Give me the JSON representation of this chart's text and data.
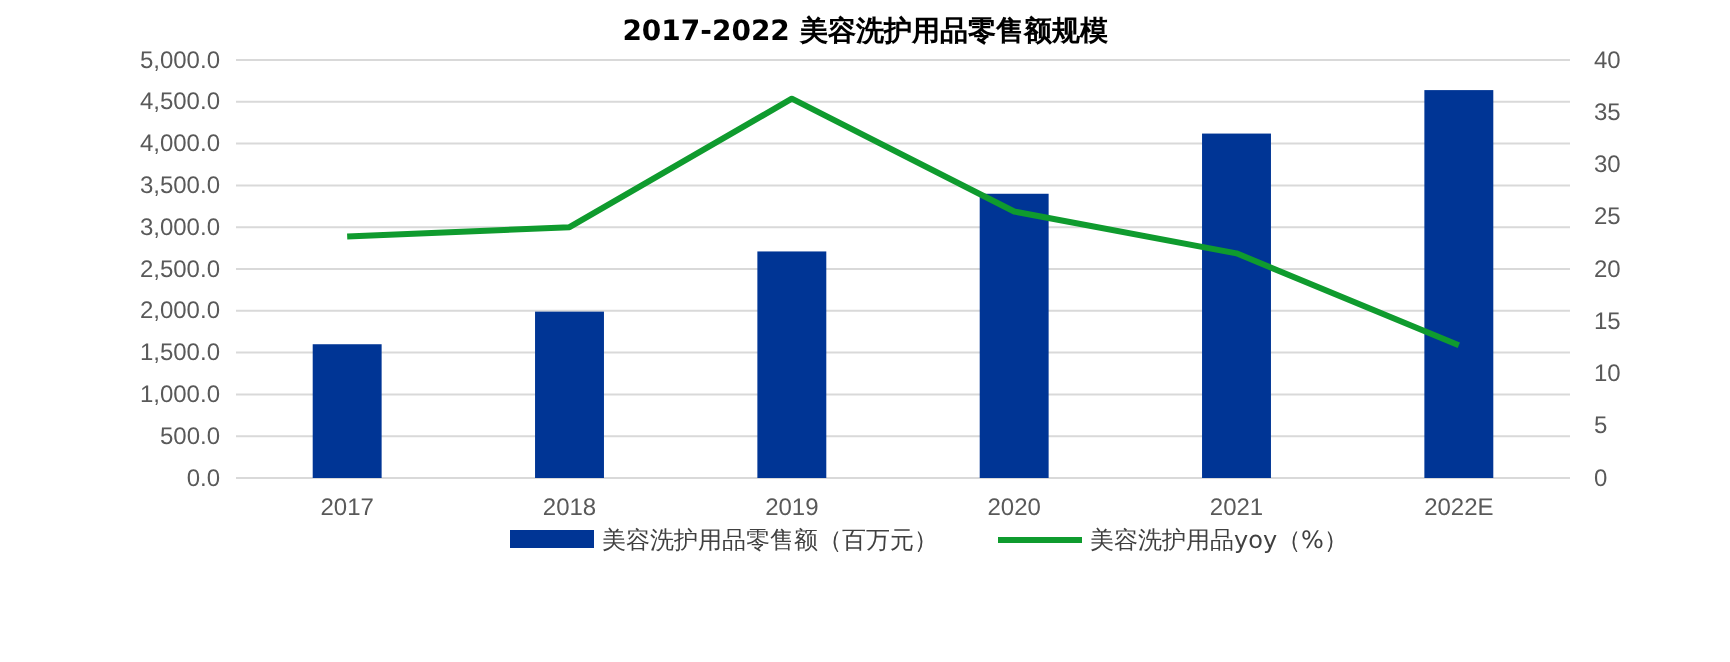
{
  "chart_data": {
    "type": "bar",
    "title": "2017-2022 美容洗护用品零售额规模",
    "categories": [
      "2017",
      "2018",
      "2019",
      "2020",
      "2021",
      "2022E"
    ],
    "series": [
      {
        "name": "美容洗护用品零售额（百万元）",
        "color": "#003595",
        "values": [
          1600,
          1990,
          2710,
          3400,
          4120,
          4640
        ]
      },
      {
        "name": "美容洗护用品yoy（%）",
        "type": "line",
        "axis": "y2",
        "color": "#0f9b2e",
        "values": [
          23.1,
          24.0,
          36.3,
          25.5,
          21.5,
          12.7
        ]
      }
    ],
    "ylim": [
      0,
      5000
    ],
    "yticks": [
      {
        "value": 0,
        "label": "0.0"
      },
      {
        "value": 500,
        "label": "500.0"
      },
      {
        "value": 1000,
        "label": "1,000.0"
      },
      {
        "value": 1500,
        "label": "1,500.0"
      },
      {
        "value": 2000,
        "label": "2,000.0"
      },
      {
        "value": 2500,
        "label": "2,500.0"
      },
      {
        "value": 3000,
        "label": "3,000.0"
      },
      {
        "value": 3500,
        "label": "3,500.0"
      },
      {
        "value": 4000,
        "label": "4,000.0"
      },
      {
        "value": 4500,
        "label": "4,500.0"
      },
      {
        "value": 5000,
        "label": "5,000.0"
      }
    ],
    "y2lim": [
      0,
      40
    ],
    "y2ticks": [
      0,
      5,
      10,
      15,
      20,
      25,
      30,
      35,
      40
    ],
    "grid": "y",
    "legend": "bottom",
    "marker": "none",
    "line_style": "solid"
  }
}
